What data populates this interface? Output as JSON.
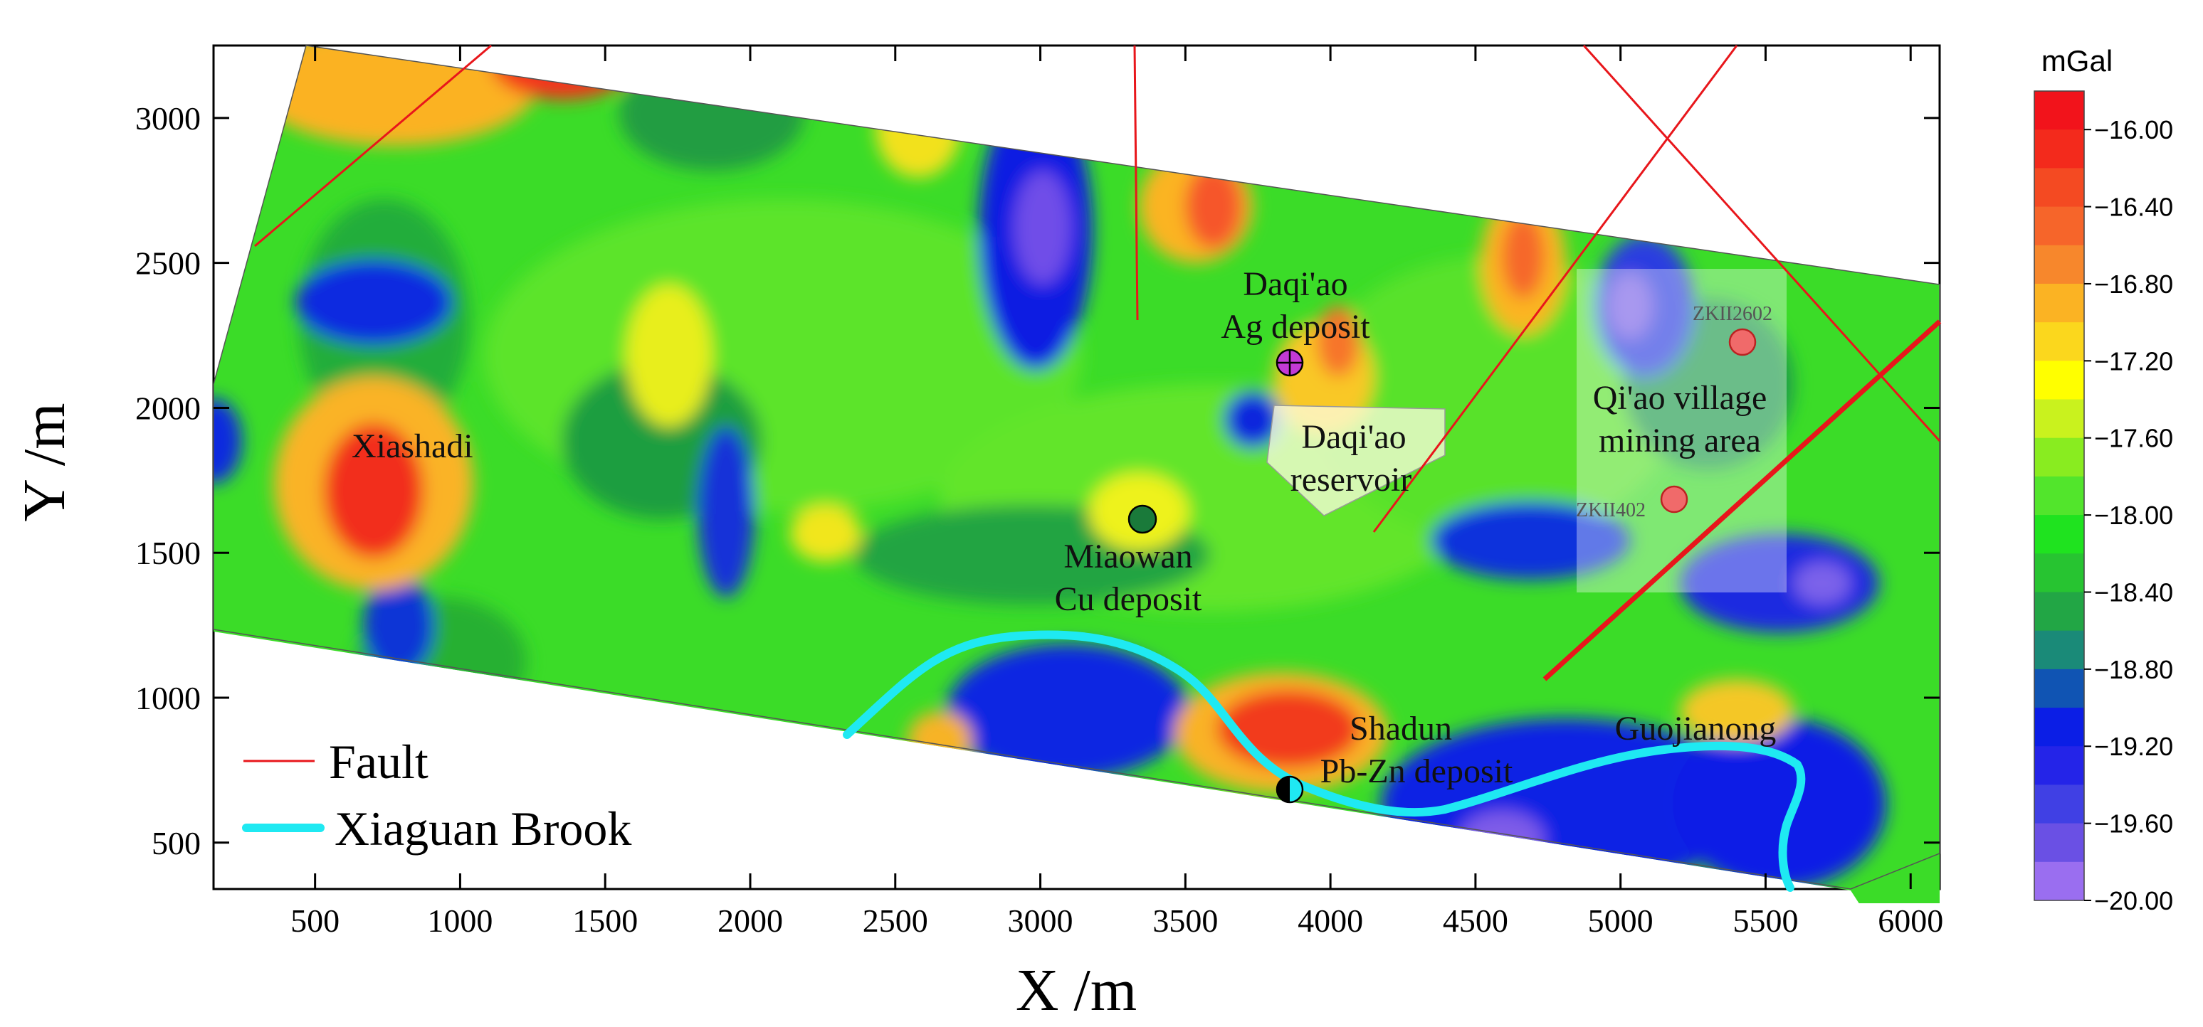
{
  "axes": {
    "x_title": "X /m",
    "y_title": "Y /m",
    "x_ticks": [
      "500",
      "1000",
      "1500",
      "2000",
      "2500",
      "3000",
      "3500",
      "4000",
      "4500",
      "5000",
      "5500",
      "6000"
    ],
    "y_ticks": [
      "500",
      "1000",
      "1500",
      "2000",
      "2500",
      "3000"
    ],
    "x_range": [
      150,
      6100
    ],
    "y_range": [
      340,
      3250
    ]
  },
  "places": {
    "daqiao_ag": "Daqi'ao",
    "daqiao_ag_2": "Ag deposit",
    "daqiao_res": "Daqi'ao",
    "daqiao_res_2": "reservoir",
    "xiashadi": "Xiashadi",
    "miaowan": "Miaowan",
    "miaowan_2": "Cu deposit",
    "qiao_village": "Qi'ao village",
    "qiao_village_2": "mining area",
    "shadun": "Shadun",
    "shadun_2": "Pb-Zn deposit",
    "guojianong": "Guojianong"
  },
  "drillholes": {
    "zk2602": "ZKII2602",
    "zk402": "ZKII402"
  },
  "legend": {
    "fault": "Fault",
    "brook": "Xiaguan Brook"
  },
  "colorbar": {
    "unit": "mGal",
    "labels": [
      "−16.00",
      "−16.40",
      "−16.80",
      "−17.20",
      "−17.60",
      "−18.00",
      "−18.40",
      "−18.80",
      "−19.20",
      "−19.60",
      "−20.00"
    ],
    "colors": [
      "#f2131b",
      "#f32a1c",
      "#f44a22",
      "#f6652a",
      "#f7872c",
      "#fbb323",
      "#fbd71d",
      "#ffff00",
      "#c9f21e",
      "#89ec20",
      "#52e52c",
      "#1fe31f",
      "#27c431",
      "#22a645",
      "#1a8a78",
      "#1054b3",
      "#0b1ee6",
      "#2424e8",
      "#4040e4",
      "#6a50e4",
      "#9a6ef0"
    ]
  },
  "colors": {
    "fault": "#e8161b",
    "brook": "#1fe9f2",
    "background": "#3dde2a"
  }
}
